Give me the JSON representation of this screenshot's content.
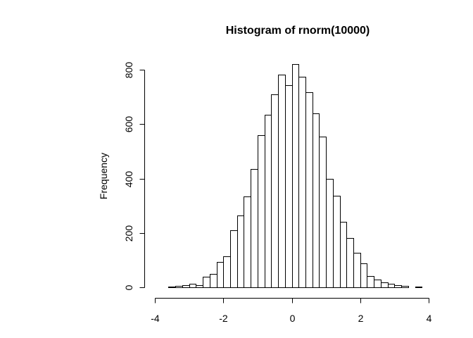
{
  "chart_data": {
    "type": "bar",
    "title": "Histogram of rnorm(10000)",
    "xlabel": "",
    "ylabel": "Frequency",
    "bin_width": 0.2,
    "bins_start": -3.8,
    "counts": [
      1,
      2,
      5,
      7,
      13,
      8,
      38,
      50,
      92,
      113,
      210,
      264,
      333,
      435,
      558,
      634,
      709,
      783,
      742,
      820,
      775,
      718,
      640,
      555,
      400,
      336,
      240,
      181,
      127,
      87,
      42,
      28,
      17,
      14,
      7,
      4,
      1,
      2,
      0,
      1
    ],
    "xlim": [
      -4,
      4.2
    ],
    "ylim": [
      0,
      800
    ],
    "x_ticks": [
      -4,
      -2,
      0,
      2,
      4
    ],
    "x_tick_labels": [
      "-4",
      "-2",
      "0",
      "2",
      "4"
    ],
    "y_ticks": [
      0,
      200,
      400,
      600,
      800
    ],
    "y_tick_labels": [
      "0",
      "200",
      "400",
      "600",
      "800"
    ],
    "grid": false,
    "colors": {
      "bar_fill": "#ffffff",
      "bar_stroke": "#000000"
    }
  }
}
